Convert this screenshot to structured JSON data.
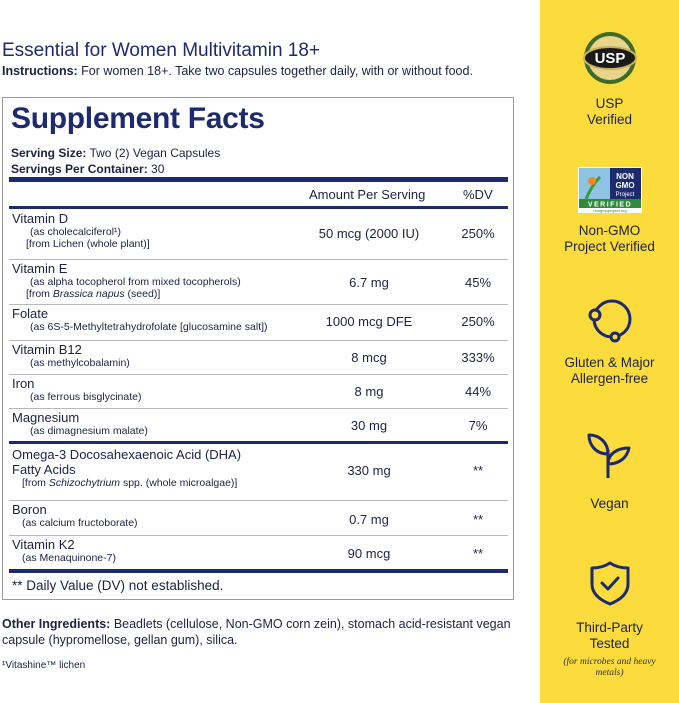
{
  "product_title": "Essential for Women Multivitamin 18+",
  "instructions": {
    "label": "Instructions:",
    "text": " For women 18+. Take two capsules together daily, with or without food."
  },
  "facts": {
    "title": "Supplement Facts",
    "serving_size_label": "Serving Size:",
    "serving_size": " Two (2) Vegan Capsules",
    "servings_label": "Servings Per Container:",
    "servings": " 30",
    "col_amount": "Amount Per Serving",
    "col_dv": "%DV",
    "rows": [
      {
        "name": "Vitamin D",
        "sub1": "(as cholecalciferol¹)",
        "sub2": "[from Lichen (whole plant)]",
        "amount": "50 mcg (2000 IU)",
        "dv": "250%"
      },
      {
        "name": "Vitamin E",
        "sub1": "(as alpha tocopherol from mixed tocopherols)",
        "sub2a": "[from ",
        "sub2i": "Brassica napus",
        "sub2b": " (seed)]",
        "amount": "6.7 mg",
        "dv": "45%"
      },
      {
        "name": "Folate",
        "sub1": "(as 6S-5-Methyltetrahydrofolate [glucosamine salt])",
        "amount": "1000 mcg DFE",
        "dv": "250%"
      },
      {
        "name": "Vitamin B12",
        "sub1": "(as methylcobalamin)",
        "amount": "8 mcg",
        "dv": "333%"
      },
      {
        "name": "Iron",
        "sub1": "(as ferrous bisglycinate)",
        "amount": "8 mg",
        "dv": "44%"
      },
      {
        "name": "Magnesium",
        "sub1": "(as dimagnesium malate)",
        "amount": "30 mg",
        "dv": "7%"
      },
      {
        "name": "Omega-3 Docosahexaenoic Acid (DHA)",
        "name2": "Fatty Acids",
        "sub2a": "[from ",
        "sub2i": "Schizochytrium",
        "sub2b": " spp. (whole microalgae)]",
        "amount": "330 mg",
        "dv": "**"
      },
      {
        "name": "Boron",
        "sub1": "(as calcium fructoborate)",
        "amount": "0.7 mg",
        "dv": "**"
      },
      {
        "name": "Vitamin K2",
        "sub1": "(as Menaquinone-7)",
        "amount": "90 mcg",
        "dv": "**"
      }
    ],
    "footnote": "** Daily Value (DV) not established."
  },
  "other_ingredients": {
    "label": "Other Ingredients:",
    "text": " Beadlets (cellulose, Non-GMO corn zein), stomach acid-resistant vegan capsule (hypromellose, gellan gum), silica."
  },
  "lichen_note": "¹Vitashine™ lichen",
  "badges": [
    {
      "icon": "usp-seal-icon",
      "line1": "USP",
      "line2": "Verified",
      "logo_text": "USP"
    },
    {
      "icon": "non-gmo-project-logo",
      "line1": "Non-GMO",
      "line2": "Project Verified",
      "logo_text": "NON GMO Project VERIFIED nongmoproject.org"
    },
    {
      "icon": "allergen-free-icon",
      "line1": "Gluten & Major",
      "line2": "Allergen-free"
    },
    {
      "icon": "sprout-icon",
      "line1": "Vegan"
    },
    {
      "icon": "shield-check-icon",
      "line1": "Third-Party",
      "line2": "Tested",
      "note": "(for microbes and heavy metals)"
    }
  ],
  "colors": {
    "navy": "#1d2a6e",
    "yellow": "#fbdc3c"
  }
}
